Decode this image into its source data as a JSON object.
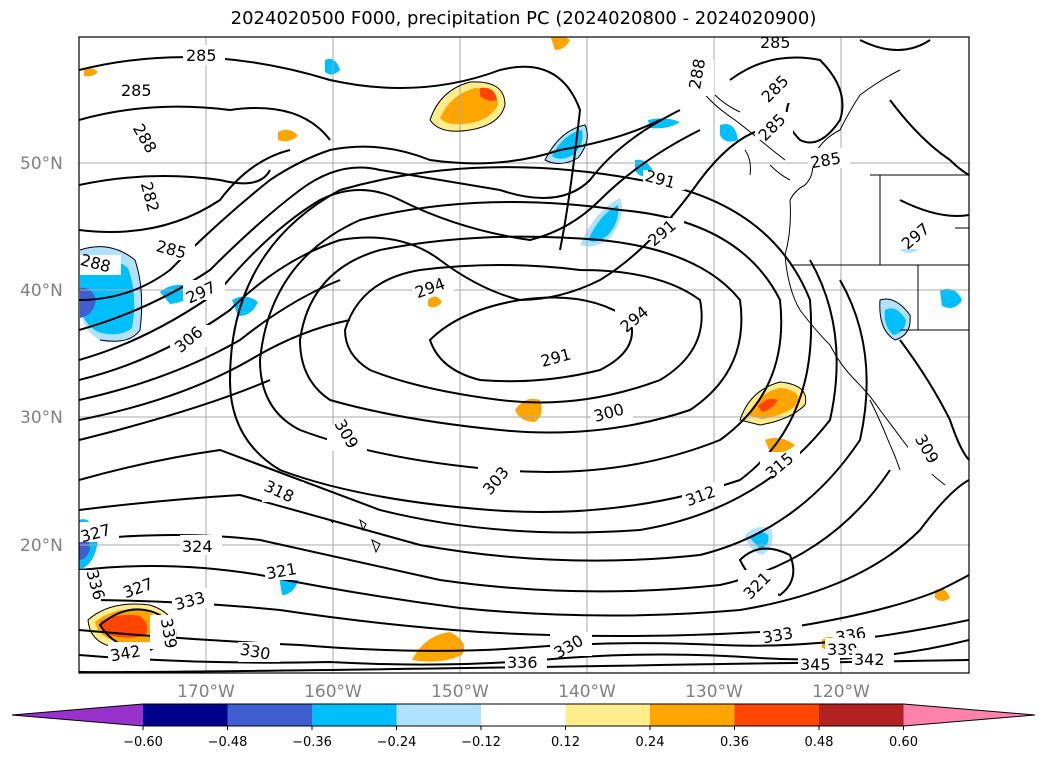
{
  "title": "2024020500 F000, precipitation PC (2024020800 - 2024020900)",
  "lat_labels": [
    "50°N",
    "40°N",
    "30°N",
    "20°N"
  ],
  "lon_labels": [
    "170°W",
    "160°W",
    "150°W",
    "140°W",
    "130°W",
    "120°W"
  ],
  "contour_labels": [
    "285",
    "285",
    "288",
    "282",
    "285",
    "288",
    "297",
    "306",
    "294",
    "291",
    "294",
    "291",
    "291",
    "300",
    "309",
    "303",
    "312",
    "315",
    "318",
    "327",
    "324",
    "321",
    "327",
    "333",
    "336",
    "339",
    "342",
    "330",
    "336",
    "330",
    "321",
    "333",
    "336",
    "339",
    "342",
    "345",
    "309",
    "297",
    "285",
    "285",
    "285",
    "288",
    "285"
  ],
  "colorbar": {
    "tick_labels": [
      "−0.60",
      "−0.48",
      "−0.36",
      "−0.24",
      "−0.12",
      "0.12",
      "0.24",
      "0.36",
      "0.48",
      "0.60"
    ],
    "colors": [
      "#9932cc",
      "#00008b",
      "#3f5fd0",
      "#00bfff",
      "#b0e2ff",
      "#ffffff",
      "#ffec8b",
      "#ffa500",
      "#ff4500",
      "#b22222",
      "#ff82ab"
    ]
  }
}
